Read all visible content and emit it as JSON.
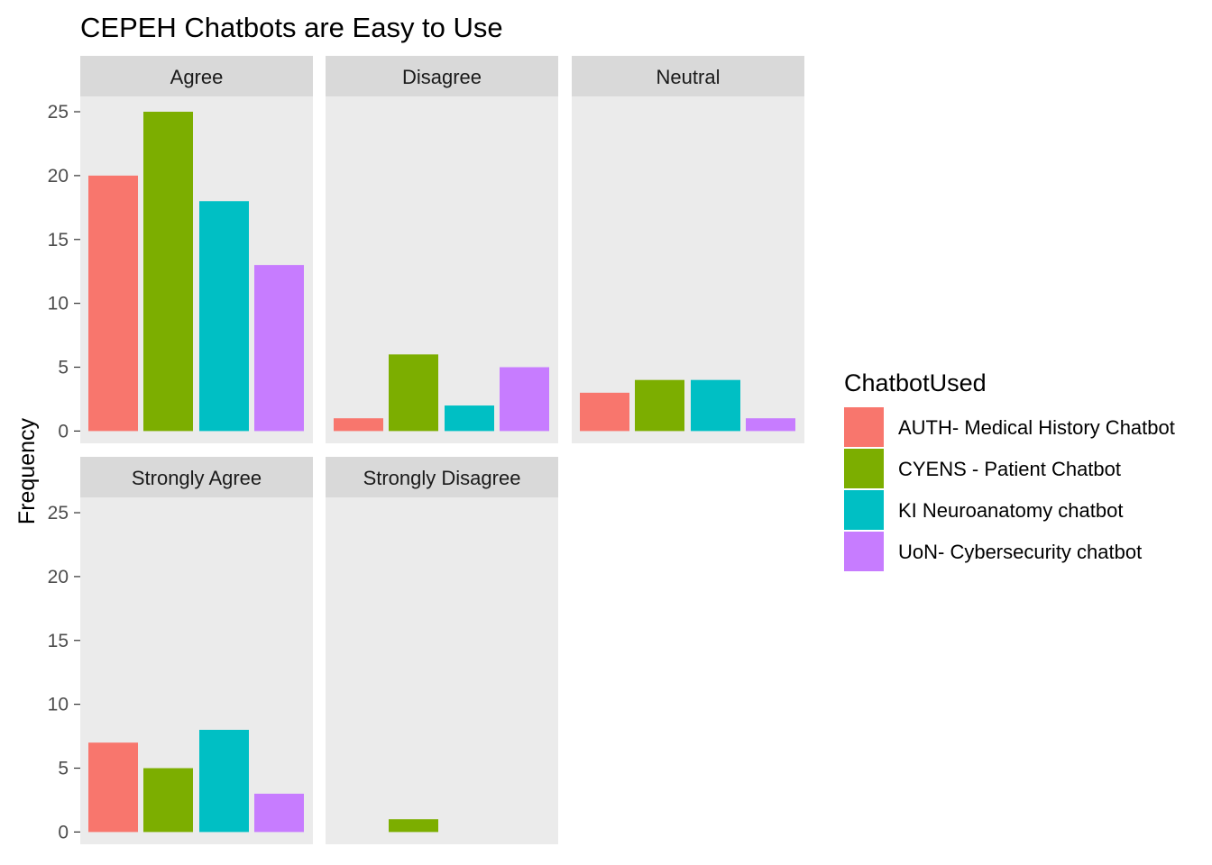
{
  "chart_data": {
    "type": "bar",
    "title": "CEPEH Chatbots are Easy to Use",
    "ylabel": "Frequency",
    "xlabel": "",
    "ylim": [
      0,
      26
    ],
    "yticks": [
      0,
      5,
      10,
      15,
      20,
      25
    ],
    "grid": false,
    "legend": {
      "title": "ChatbotUsed",
      "placement": "right"
    },
    "series": [
      {
        "name": "AUTH- Medical History Chatbot",
        "color": "#F8766D"
      },
      {
        "name": "CYENS - Patient Chatbot",
        "color": "#7CAE00"
      },
      {
        "name": "KI Neuroanatomy chatbot",
        "color": "#00BFC4"
      },
      {
        "name": "UoN- Cybersecurity chatbot",
        "color": "#C77CFF"
      }
    ],
    "facets": [
      {
        "label": "Agree",
        "values": [
          20,
          25,
          18,
          13
        ]
      },
      {
        "label": "Disagree",
        "values": [
          1,
          6,
          2,
          5
        ]
      },
      {
        "label": "Neutral",
        "values": [
          3,
          4,
          4,
          1
        ]
      },
      {
        "label": "Strongly Agree",
        "values": [
          7,
          5,
          8,
          3
        ]
      },
      {
        "label": "Strongly Disagree",
        "values": [
          null,
          1,
          null,
          null
        ]
      }
    ]
  }
}
